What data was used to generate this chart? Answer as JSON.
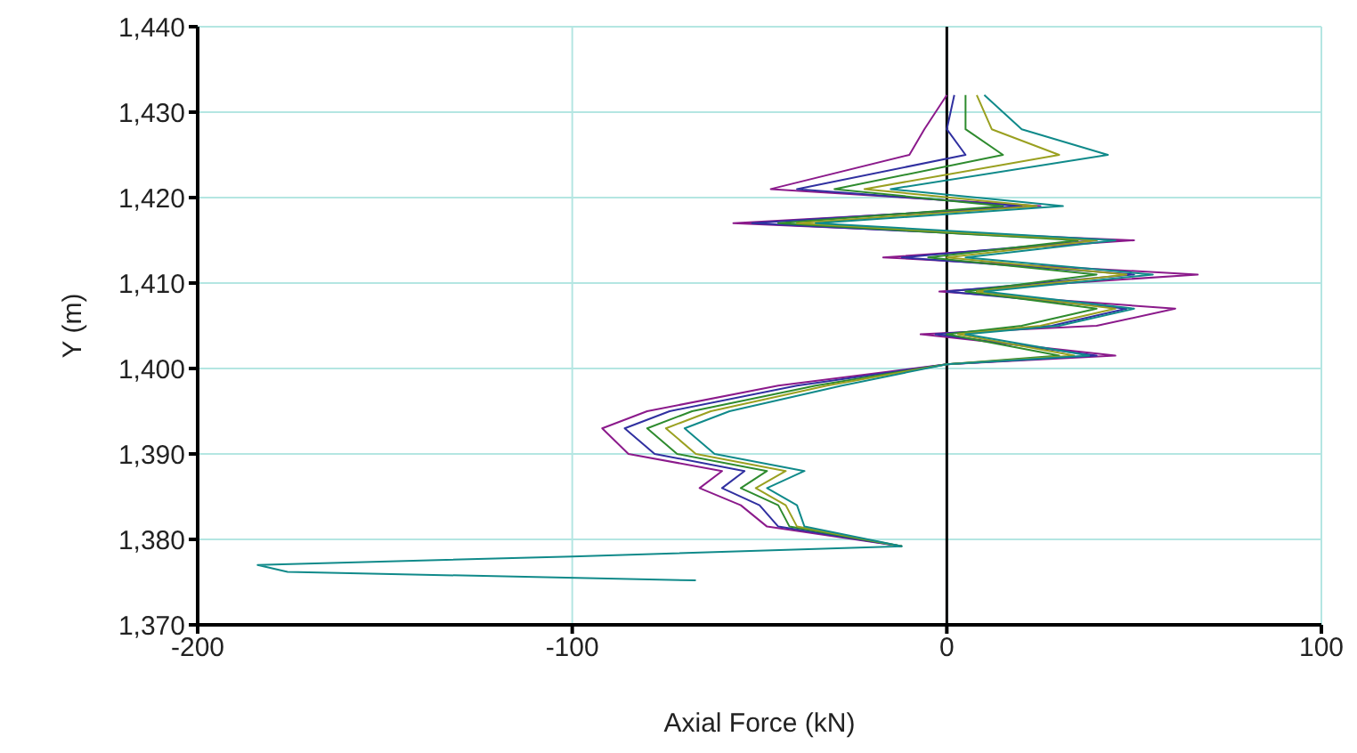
{
  "chart_data": {
    "type": "line",
    "xlabel": "Axial Force (kN)",
    "ylabel": "Y (m)",
    "xlim": [
      -200,
      100
    ],
    "xticks": [
      -200,
      -100,
      0,
      100
    ],
    "ylim": [
      1370,
      1440
    ],
    "yticks": [
      {
        "value": 1370,
        "label": "1,370"
      },
      {
        "value": 1380,
        "label": "1,380"
      },
      {
        "value": 1390,
        "label": "1,390"
      },
      {
        "value": 1400,
        "label": "1,400"
      },
      {
        "value": 1410,
        "label": "1,410"
      },
      {
        "value": 1420,
        "label": "1,420"
      },
      {
        "value": 1430,
        "label": "1,430"
      },
      {
        "value": 1440,
        "label": "1,440"
      }
    ],
    "grid": true,
    "marker": "none",
    "line_style": "solid",
    "legend": false,
    "ref_lines": [
      {
        "axis": "x",
        "value": 0,
        "color": "#000000"
      }
    ],
    "series": [
      {
        "color": "#8b1a8b",
        "x": [
          0,
          -6,
          -10,
          -47,
          25,
          -57,
          50,
          -17,
          67,
          -2,
          61,
          40,
          -7,
          45,
          0,
          -45,
          -80,
          -92,
          -85,
          -60,
          -66,
          -55,
          -48,
          -12
        ],
        "values": [
          1432,
          1428,
          1425,
          1421,
          1419,
          1417,
          1415,
          1413,
          1411,
          1409,
          1407,
          1405,
          1404,
          1401.5,
          1400.5,
          1398,
          1395,
          1393,
          1390,
          1388,
          1386,
          1384,
          1381.5,
          1379.2
        ]
      },
      {
        "color": "#3030a0",
        "x": [
          2,
          0,
          5,
          -40,
          20,
          -52,
          40,
          -12,
          50,
          0,
          48,
          28,
          -3,
          40,
          0,
          -40,
          -74,
          -86,
          -78,
          -54,
          -60,
          -50,
          -45,
          -12
        ],
        "values": [
          1432,
          1428,
          1425,
          1421,
          1419,
          1417,
          1415,
          1413,
          1411,
          1409,
          1407,
          1405,
          1404,
          1401.5,
          1400.5,
          1398,
          1395,
          1393,
          1390,
          1388,
          1386,
          1384,
          1381.5,
          1379.2
        ]
      },
      {
        "color": "#2e8b2e",
        "x": [
          5,
          5,
          15,
          -30,
          15,
          -45,
          35,
          -5,
          40,
          5,
          40,
          20,
          0,
          30,
          0,
          -35,
          -68,
          -80,
          -72,
          -48,
          -55,
          -45,
          -42,
          -12
        ],
        "values": [
          1432,
          1428,
          1425,
          1421,
          1419,
          1417,
          1415,
          1413,
          1411,
          1409,
          1407,
          1405,
          1404,
          1401.5,
          1400.5,
          1398,
          1395,
          1393,
          1390,
          1388,
          1386,
          1384,
          1381.5,
          1379.2
        ]
      },
      {
        "color": "#9aa020",
        "x": [
          8,
          12,
          30,
          -22,
          24,
          -40,
          40,
          0,
          48,
          8,
          45,
          25,
          3,
          34,
          0,
          -32,
          -63,
          -75,
          -67,
          -43,
          -51,
          -43,
          -40,
          -12
        ],
        "values": [
          1432,
          1428,
          1425,
          1421,
          1419,
          1417,
          1415,
          1413,
          1411,
          1409,
          1407,
          1405,
          1404,
          1401.5,
          1400.5,
          1398,
          1395,
          1393,
          1390,
          1388,
          1386,
          1384,
          1381.5,
          1379.2
        ]
      },
      {
        "color": "#108a8a",
        "x": [
          10,
          20,
          43,
          -15,
          31,
          -35,
          45,
          5,
          55,
          10,
          50,
          30,
          5,
          38,
          0,
          -28,
          -58,
          -70,
          -62,
          -38,
          -48,
          -40,
          -38,
          -12,
          -100,
          -184,
          -176,
          -67
        ],
        "values": [
          1432,
          1428,
          1425,
          1421,
          1419,
          1417,
          1415,
          1413,
          1411,
          1409,
          1407,
          1405,
          1404,
          1401.5,
          1400.5,
          1398,
          1395,
          1393,
          1390,
          1388,
          1386,
          1384,
          1381.5,
          1379.2,
          1378,
          1377,
          1376.2,
          1375.2
        ]
      }
    ]
  }
}
